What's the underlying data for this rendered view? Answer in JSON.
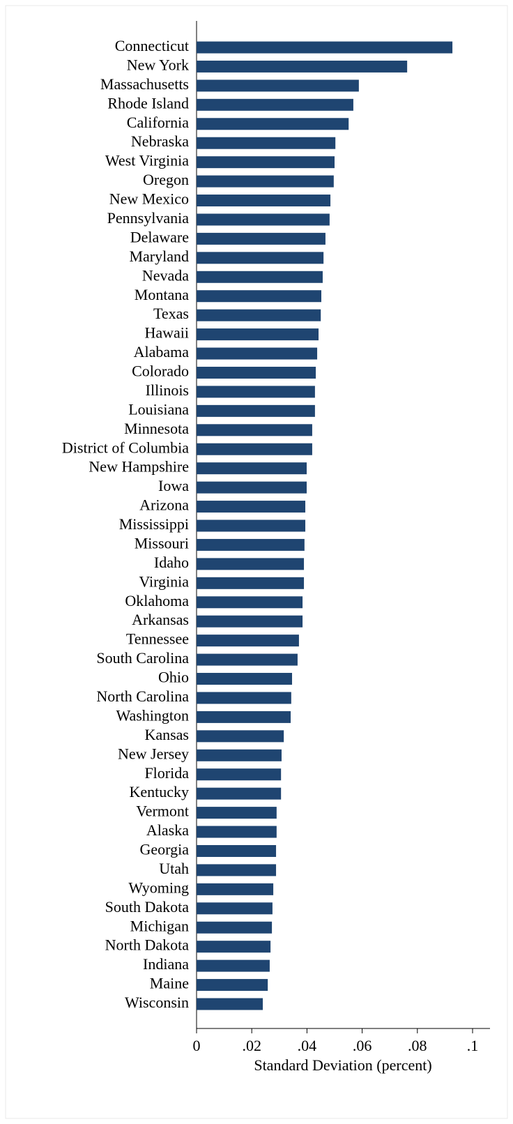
{
  "chart_data": {
    "type": "hbar",
    "x_label": "Standard Deviation (percent)",
    "categories": [
      "Connecticut",
      "New York",
      "Massachusetts",
      "Rhode Island",
      "California",
      "Nebraska",
      "West Virginia",
      "Oregon",
      "New Mexico",
      "Pennsylvania",
      "Delaware",
      "Maryland",
      "Nevada",
      "Montana",
      "Texas",
      "Hawaii",
      "Alabama",
      "Colorado",
      "Illinois",
      "Louisiana",
      "Minnesota",
      "District of Columbia",
      "New Hampshire",
      "Iowa",
      "Arizona",
      "Mississippi",
      "Missouri",
      "Idaho",
      "Virginia",
      "Oklahoma",
      "Arkansas",
      "Tennessee",
      "South Carolina",
      "Ohio",
      "North Carolina",
      "Washington",
      "Kansas",
      "New Jersey",
      "Florida",
      "Kentucky",
      "Vermont",
      "Alaska",
      "Georgia",
      "Utah",
      "Wyoming",
      "South Dakota",
      "Michigan",
      "North Dakota",
      "Indiana",
      "Maine",
      "Wisconsin"
    ],
    "values": [
      0.0927,
      0.0763,
      0.0588,
      0.0568,
      0.0551,
      0.0503,
      0.05,
      0.0497,
      0.0485,
      0.0482,
      0.0467,
      0.046,
      0.0457,
      0.0452,
      0.045,
      0.0442,
      0.0437,
      0.0432,
      0.0429,
      0.0429,
      0.0419,
      0.0419,
      0.0399,
      0.0399,
      0.0394,
      0.0394,
      0.0391,
      0.0389,
      0.0389,
      0.0384,
      0.0384,
      0.0371,
      0.0366,
      0.0346,
      0.0343,
      0.0341,
      0.0316,
      0.0308,
      0.0306,
      0.0306,
      0.029,
      0.029,
      0.0288,
      0.0288,
      0.0278,
      0.0275,
      0.0273,
      0.0268,
      0.0265,
      0.0258,
      0.024
    ],
    "color": "#1f4571",
    "xlim": [
      0,
      0.1
    ],
    "xticks": [
      0,
      {
        "value": 0.02,
        "label": ".02"
      },
      {
        "value": 0.04,
        "label": ".04"
      },
      {
        "value": 0.06,
        "label": ".06"
      },
      {
        "value": 0.08,
        "label": ".08"
      },
      {
        "value": 0.1,
        "label": ".1"
      }
    ]
  }
}
